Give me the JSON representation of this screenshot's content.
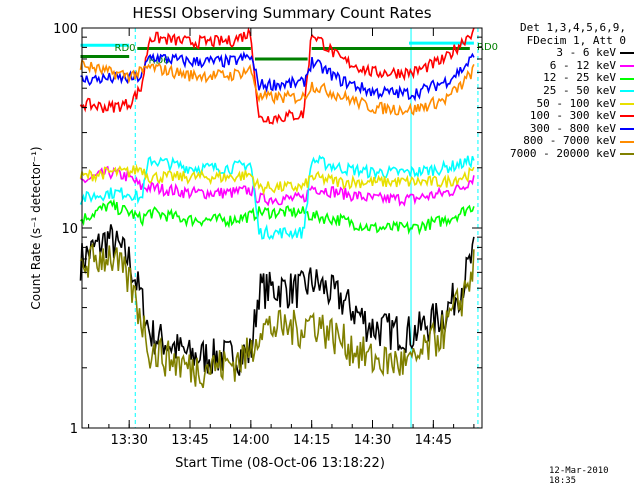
{
  "chart_data": {
    "type": "line",
    "title": "HESSI Observing Summary Count Rates",
    "xlabel": "Start Time (08-Oct-06 13:18:22)",
    "ylabel": "Count Rate (s⁻¹ detector⁻¹)",
    "yscale": "log",
    "ylim": [
      1,
      100
    ],
    "xlim": [
      "13:18:22",
      "14:57:00"
    ],
    "x_ticks": [
      "13:30",
      "13:45",
      "14:00",
      "14:15",
      "14:30",
      "14:45"
    ],
    "y_ticks": [
      "1",
      "10",
      "100"
    ],
    "annotations": [
      "RD0",
      "RD6"
    ],
    "legend_header": [
      "Det 1,3,4,5,6,9,",
      "FDecim 1, Att 0"
    ],
    "series": [
      {
        "name": "3 - 6 keV",
        "color": "#000000",
        "x": [
          "13:18",
          "13:25",
          "13:30",
          "13:33",
          "13:35",
          "13:45",
          "13:55",
          "14:00",
          "14:02",
          "14:13",
          "14:15",
          "14:22",
          "14:30",
          "14:40",
          "14:48",
          "14:52",
          "14:55"
        ],
        "y": [
          7,
          9,
          7,
          4.5,
          3,
          2.3,
          2.3,
          2.4,
          5,
          5,
          5.5,
          4.5,
          3.2,
          3,
          3.8,
          5.2,
          7.5
        ]
      },
      {
        "name": "6 - 12 keV",
        "color": "#ff00ff",
        "x": [
          "13:18",
          "13:25",
          "13:30",
          "13:33",
          "13:35",
          "13:45",
          "13:55",
          "14:00",
          "14:02",
          "14:13",
          "14:15",
          "14:22",
          "14:30",
          "14:40",
          "14:48",
          "14:52",
          "14:55"
        ],
        "y": [
          17,
          19,
          18,
          16,
          16,
          15,
          15,
          15.5,
          14,
          14,
          16,
          15,
          14,
          14,
          15,
          16,
          18
        ]
      },
      {
        "name": "12 - 25 keV",
        "color": "#00ff00",
        "x": [
          "13:18",
          "13:25",
          "13:30",
          "13:33",
          "13:35",
          "13:45",
          "13:55",
          "14:00",
          "14:02",
          "14:13",
          "14:15",
          "14:22",
          "14:30",
          "14:40",
          "14:48",
          "14:52",
          "14:55"
        ],
        "y": [
          11,
          13,
          12,
          11,
          12,
          11,
          11,
          11.5,
          12,
          12,
          11.5,
          11,
          10,
          10,
          11,
          12,
          13
        ]
      },
      {
        "name": "25 - 50 keV",
        "color": "#00ffff",
        "x": [
          "13:18",
          "13:25",
          "13:30",
          "13:33",
          "13:35",
          "13:45",
          "13:55",
          "14:00",
          "14:02",
          "14:13",
          "14:15",
          "14:22",
          "14:30",
          "14:40",
          "14:48",
          "14:52",
          "14:55"
        ],
        "y": [
          14,
          15,
          15,
          14,
          22,
          20,
          20,
          21,
          9.5,
          9.5,
          22,
          20,
          19,
          19,
          20,
          21,
          22
        ]
      },
      {
        "name": "50 - 100 keV",
        "color": "#e8e000",
        "x": [
          "13:18",
          "13:25",
          "13:30",
          "13:33",
          "13:35",
          "13:45",
          "13:55",
          "14:00",
          "14:02",
          "14:13",
          "14:15",
          "14:22",
          "14:30",
          "14:40",
          "14:48",
          "14:52",
          "14:55"
        ],
        "y": [
          18,
          19,
          19,
          20,
          18,
          18,
          18,
          18.5,
          16,
          16,
          18,
          17,
          17,
          17,
          17,
          18,
          19
        ]
      },
      {
        "name": "100 - 300 keV",
        "color": "#ff0000",
        "x": [
          "13:18",
          "13:25",
          "13:30",
          "13:33",
          "13:35",
          "13:45",
          "13:55",
          "14:00",
          "14:02",
          "14:13",
          "14:15",
          "14:22",
          "14:30",
          "14:40",
          "14:48",
          "14:52",
          "14:55"
        ],
        "y": [
          42,
          40,
          42,
          50,
          90,
          85,
          86,
          95,
          35,
          37,
          95,
          70,
          60,
          60,
          70,
          85,
          98
        ]
      },
      {
        "name": "300 - 800 keV",
        "color": "#0000ff",
        "x": [
          "13:18",
          "13:25",
          "13:30",
          "13:33",
          "13:35",
          "13:45",
          "13:55",
          "14:00",
          "14:02",
          "14:13",
          "14:15",
          "14:22",
          "14:30",
          "14:40",
          "14:48",
          "14:52",
          "14:55"
        ],
        "y": [
          55,
          56,
          56,
          57,
          72,
          68,
          68,
          72,
          52,
          53,
          68,
          55,
          48,
          47,
          54,
          62,
          72
        ]
      },
      {
        "name": "800 - 7000 keV",
        "color": "#ff8c00",
        "x": [
          "13:18",
          "13:25",
          "13:30",
          "13:33",
          "13:35",
          "13:45",
          "13:55",
          "14:00",
          "14:02",
          "14:13",
          "14:15",
          "14:22",
          "14:30",
          "14:40",
          "14:48",
          "14:52",
          "14:55"
        ],
        "y": [
          66,
          60,
          58,
          60,
          64,
          58,
          58,
          62,
          45,
          45,
          52,
          46,
          40,
          39,
          44,
          52,
          62
        ]
      },
      {
        "name": "7000 - 20000 keV",
        "color": "#808000",
        "x": [
          "13:18",
          "13:25",
          "13:30",
          "13:33",
          "13:35",
          "13:45",
          "13:55",
          "14:00",
          "14:02",
          "14:13",
          "14:15",
          "14:22",
          "14:30",
          "14:40",
          "14:48",
          "14:52",
          "14:55"
        ],
        "y": [
          6.5,
          7.5,
          5.5,
          3.6,
          2.5,
          2.0,
          2.1,
          2.4,
          3.2,
          3.2,
          3.5,
          2.8,
          2.2,
          2.1,
          3.2,
          4.5,
          6.5
        ]
      }
    ],
    "vlines": [
      {
        "x": "13:31:30",
        "color": "#00ffff",
        "style": "dashed"
      },
      {
        "x": "14:39:30",
        "color": "#00ffff",
        "style": "solid"
      },
      {
        "x": "14:56:00",
        "color": "#00ffff",
        "style": "dashed"
      }
    ],
    "overlay_bars": [
      {
        "label": "RD0",
        "color": "#00ffff",
        "x": [
          "13:18",
          "13:30"
        ],
        "y": 82
      },
      {
        "label": "RD0",
        "color": "#00ffff",
        "x": [
          "14:39",
          "14:55"
        ],
        "y": 84
      },
      {
        "label": "RD6",
        "color": "#008000",
        "x": [
          "13:18",
          "13:30"
        ],
        "y": 72
      },
      {
        "label": "",
        "color": "#008000",
        "x": [
          "13:32",
          "14:00"
        ],
        "y": 79
      },
      {
        "label": "",
        "color": "#008000",
        "x": [
          "14:01",
          "14:14"
        ],
        "y": 70
      },
      {
        "label": "",
        "color": "#008000",
        "x": [
          "14:15",
          "14:54"
        ],
        "y": 79
      }
    ]
  },
  "timestamp": "12-Mar-2010 18:35"
}
